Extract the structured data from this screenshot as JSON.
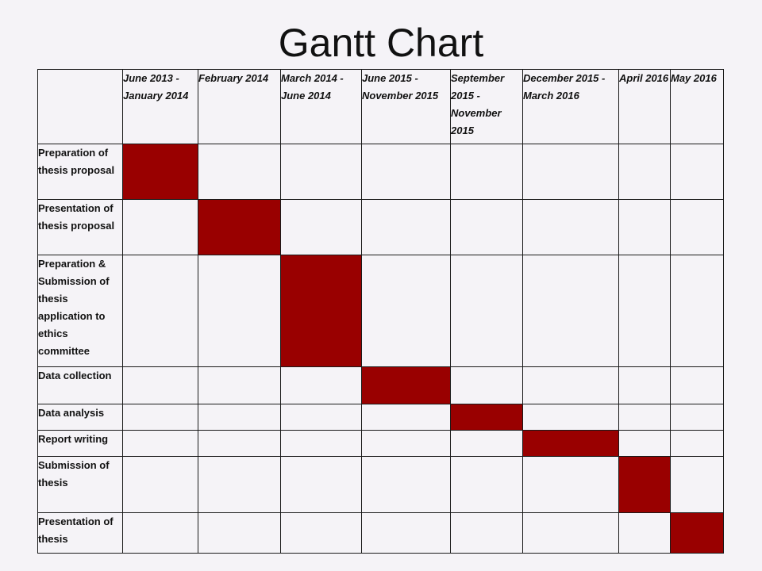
{
  "title": "Gantt Chart",
  "periods": [
    "June 2013 - January 2014",
    "February 2014",
    "March 2014 - June 2014",
    "June 2015 - November 2015",
    "September 2015 - November 2015",
    "December 2015 - March 2016",
    "April 2016",
    "May 2016"
  ],
  "tasks": [
    "Preparation of thesis proposal",
    "Presentation of thesis proposal",
    "Preparation & Submission of thesis application to ethics committee",
    "Data collection",
    "Data analysis",
    "Report writing",
    "Submission of thesis",
    "Presentation of thesis"
  ],
  "schedule": [
    0,
    1,
    2,
    3,
    4,
    5,
    6,
    7
  ],
  "colors": {
    "bar": "#990000",
    "grid": "#1a1a1a",
    "background": "#f5f3f7"
  }
}
